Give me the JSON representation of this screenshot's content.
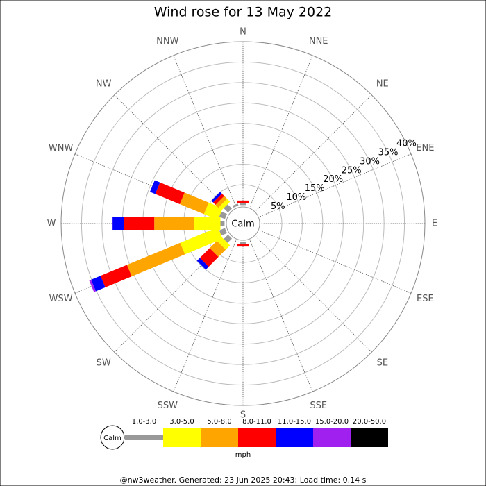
{
  "chart_data": {
    "type": "windrose",
    "title": "Wind rose for 13 May 2022",
    "calm_label": "Calm",
    "legend_unit": "mph",
    "footer": "@nw3weather. Generated: 23 Jun 2025 20:43; Load time: 0.14 s",
    "directions": [
      "N",
      "NNE",
      "NE",
      "ENE",
      "E",
      "ESE",
      "SE",
      "SSE",
      "S",
      "SSW",
      "SW",
      "WSW",
      "W",
      "WNW",
      "NW",
      "NNW"
    ],
    "rlim": [
      0,
      40
    ],
    "rticks": [
      {
        "value": 5,
        "label": "5%"
      },
      {
        "value": 10,
        "label": "10%"
      },
      {
        "value": 15,
        "label": "15%"
      },
      {
        "value": 20,
        "label": "20%"
      },
      {
        "value": 25,
        "label": "25%"
      },
      {
        "value": 30,
        "label": "30%"
      },
      {
        "value": 35,
        "label": "35%"
      },
      {
        "value": 40,
        "label": "40%"
      }
    ],
    "series": [
      {
        "name": "1.0-3.0",
        "color": "#999999",
        "values": [
          0.5,
          0,
          0,
          0,
          0,
          0,
          0,
          0,
          0.5,
          0,
          1.5,
          1.5,
          1,
          1.5,
          1.5,
          0.5
        ]
      },
      {
        "name": "3.0-5.0",
        "color": "#ffff00",
        "values": [
          0,
          0,
          0,
          0,
          0,
          0,
          0,
          0,
          0,
          0,
          1.5,
          10,
          6.4,
          3.7,
          1,
          0
        ]
      },
      {
        "name": "5.0-8.0",
        "color": "#ffa500",
        "values": [
          0,
          0,
          0,
          0,
          0,
          0,
          0,
          0,
          0,
          0,
          2.5,
          14.1,
          9.8,
          6.4,
          1,
          0
        ]
      },
      {
        "name": "8.0-11.0",
        "color": "#ff0000",
        "values": [
          0.6,
          0,
          0,
          0,
          0,
          0,
          0,
          0,
          0.6,
          0,
          3.4,
          7,
          7.5,
          6.5,
          0.8,
          0
        ]
      },
      {
        "name": "11.0-15.0",
        "color": "#0000ff",
        "values": [
          0,
          0,
          0,
          0,
          0,
          0,
          0,
          0,
          0,
          0,
          1,
          2.5,
          2.7,
          1.4,
          0.6,
          0
        ]
      },
      {
        "name": "15.0-20.0",
        "color": "#a020f0",
        "values": [
          0,
          0,
          0,
          0,
          0,
          0,
          0,
          0,
          0,
          0,
          0,
          0.5,
          0.2,
          0,
          0,
          0
        ]
      },
      {
        "name": "20.0-50.0",
        "color": "#000000",
        "values": [
          0,
          0,
          0,
          0,
          0,
          0,
          0,
          0,
          0,
          0,
          0,
          0,
          0,
          0,
          0,
          0
        ]
      }
    ]
  }
}
